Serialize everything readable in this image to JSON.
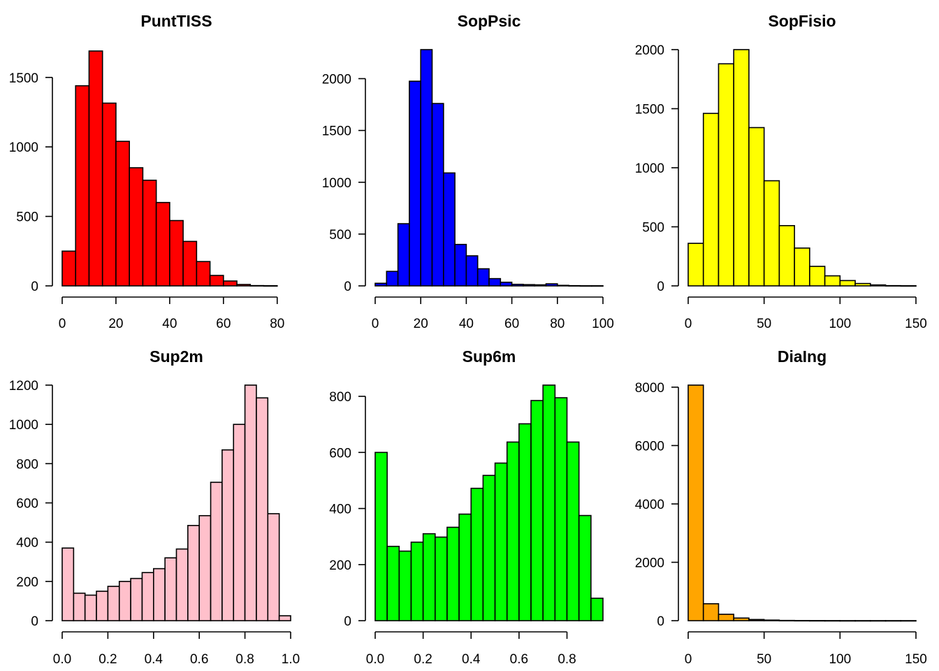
{
  "chart_data": [
    {
      "type": "bar",
      "title": "PuntTISS",
      "xlabel": "",
      "ylabel": "",
      "xlim": [
        0,
        85
      ],
      "ylim": [
        0,
        1700
      ],
      "x_ticks": [
        0,
        20,
        40,
        60,
        80
      ],
      "x_tick_labels": [
        "0",
        "20",
        "40",
        "60",
        "80"
      ],
      "y_ticks": [
        0,
        500,
        1000,
        1500
      ],
      "y_tick_labels": [
        "0",
        "500",
        "1000",
        "1500"
      ],
      "bin_edges": [
        0,
        5,
        10,
        15,
        20,
        25,
        30,
        35,
        40,
        45,
        50,
        55,
        60,
        65,
        70,
        75,
        80,
        85
      ],
      "values": [
        250,
        1440,
        1690,
        1315,
        1040,
        850,
        760,
        600,
        470,
        320,
        175,
        75,
        35,
        10,
        2,
        1,
        0
      ],
      "color": "#ff0000"
    },
    {
      "type": "bar",
      "title": "SopPsic",
      "xlabel": "",
      "ylabel": "",
      "xlim": [
        0,
        100
      ],
      "ylim": [
        0,
        2280
      ],
      "x_ticks": [
        0,
        20,
        40,
        60,
        80,
        100
      ],
      "x_tick_labels": [
        "0",
        "20",
        "40",
        "60",
        "80",
        "100"
      ],
      "y_ticks": [
        0,
        500,
        1000,
        1500,
        2000
      ],
      "y_tick_labels": [
        "0",
        "500",
        "1000",
        "1500",
        "2000"
      ],
      "bin_edges": [
        0,
        5,
        10,
        15,
        20,
        25,
        30,
        35,
        40,
        45,
        50,
        55,
        60,
        65,
        70,
        75,
        80,
        85,
        90,
        95,
        100
      ],
      "values": [
        25,
        140,
        600,
        1975,
        2280,
        1760,
        1090,
        400,
        290,
        165,
        70,
        35,
        15,
        12,
        10,
        20,
        5,
        2,
        1,
        1
      ],
      "color": "#0000ff"
    },
    {
      "type": "bar",
      "title": "SopFisio",
      "xlabel": "",
      "ylabel": "",
      "xlim": [
        0,
        150
      ],
      "ylim": [
        0,
        2000
      ],
      "x_ticks": [
        0,
        50,
        100,
        150
      ],
      "x_tick_labels": [
        "0",
        "50",
        "100",
        "150"
      ],
      "y_ticks": [
        0,
        500,
        1000,
        1500,
        2000
      ],
      "y_tick_labels": [
        "0",
        "500",
        "1000",
        "1500",
        "2000"
      ],
      "bin_edges": [
        0,
        10,
        20,
        30,
        40,
        50,
        60,
        70,
        80,
        90,
        100,
        110,
        120,
        130,
        140,
        150
      ],
      "values": [
        360,
        1460,
        1880,
        2000,
        1340,
        890,
        510,
        320,
        165,
        85,
        45,
        20,
        8,
        2,
        1
      ],
      "color": "#ffff00"
    },
    {
      "type": "bar",
      "title": "Sup2m",
      "xlabel": "",
      "ylabel": "",
      "xlim": [
        0,
        1
      ],
      "ylim": [
        0,
        1200
      ],
      "x_ticks": [
        0,
        0.2,
        0.4,
        0.6,
        0.8,
        1.0
      ],
      "x_tick_labels": [
        "0.0",
        "0.2",
        "0.4",
        "0.6",
        "0.8",
        "1.0"
      ],
      "y_ticks": [
        0,
        200,
        400,
        600,
        800,
        1000,
        1200
      ],
      "y_tick_labels": [
        "0",
        "200",
        "400",
        "600",
        "800",
        "1000",
        "1200"
      ],
      "bin_edges": [
        0,
        0.05,
        0.1,
        0.15,
        0.2,
        0.25,
        0.3,
        0.35,
        0.4,
        0.45,
        0.5,
        0.55,
        0.6,
        0.65,
        0.7,
        0.75,
        0.8,
        0.85,
        0.9,
        0.95,
        1.0
      ],
      "values": [
        370,
        140,
        130,
        150,
        175,
        200,
        215,
        245,
        265,
        320,
        365,
        485,
        535,
        705,
        870,
        1000,
        1200,
        1135,
        545,
        25
      ],
      "color": "#ffc0cb"
    },
    {
      "type": "bar",
      "title": "Sup6m",
      "xlabel": "",
      "ylabel": "",
      "xlim": [
        0,
        0.95
      ],
      "ylim": [
        0,
        840
      ],
      "x_ticks": [
        0,
        0.2,
        0.4,
        0.6,
        0.8
      ],
      "x_tick_labels": [
        "0.0",
        "0.2",
        "0.4",
        "0.6",
        "0.8"
      ],
      "y_ticks": [
        0,
        200,
        400,
        600,
        800
      ],
      "y_tick_labels": [
        "0",
        "200",
        "400",
        "600",
        "800"
      ],
      "bin_edges": [
        0,
        0.05,
        0.1,
        0.15,
        0.2,
        0.25,
        0.3,
        0.35,
        0.4,
        0.45,
        0.5,
        0.55,
        0.6,
        0.65,
        0.7,
        0.75,
        0.8,
        0.85,
        0.9,
        0.95
      ],
      "values": [
        600,
        265,
        248,
        280,
        310,
        298,
        333,
        380,
        472,
        518,
        562,
        637,
        702,
        785,
        840,
        795,
        637,
        375,
        80
      ],
      "color": "#00ff00"
    },
    {
      "type": "bar",
      "title": "DiaIng",
      "xlabel": "",
      "ylabel": "",
      "xlim": [
        0,
        150
      ],
      "ylim": [
        0,
        8070
      ],
      "x_ticks": [
        0,
        50,
        100,
        150
      ],
      "x_tick_labels": [
        "0",
        "50",
        "100",
        "150"
      ],
      "y_ticks": [
        0,
        2000,
        4000,
        6000,
        8000
      ],
      "y_tick_labels": [
        "0",
        "2000",
        "4000",
        "6000",
        "8000"
      ],
      "bin_edges": [
        0,
        10,
        20,
        30,
        40,
        50,
        60,
        70,
        80,
        90,
        100,
        110,
        120,
        130,
        140,
        150
      ],
      "values": [
        8070,
        580,
        220,
        90,
        40,
        20,
        8,
        5,
        3,
        2,
        1,
        1,
        1,
        1,
        1
      ],
      "color": "#ffa500"
    }
  ]
}
